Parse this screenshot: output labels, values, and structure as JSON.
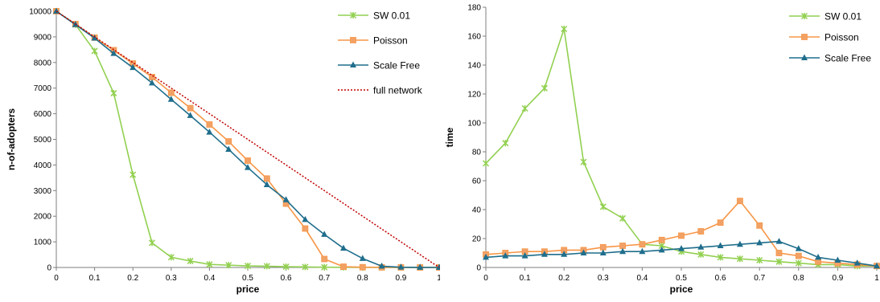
{
  "colors": {
    "sw": "#92d050",
    "poisson": "#f79646",
    "poisson_fill": "#f2a166",
    "scalefree": "#1f6e8c",
    "full": "#c00000",
    "axis": "#7f7f7f"
  },
  "chart_data": [
    {
      "type": "line",
      "xlabel": "price",
      "ylabel": "n-of-adopters",
      "xlim": [
        0,
        1
      ],
      "ylim": [
        0,
        10000
      ],
      "x_ticks": [
        0,
        0.1,
        0.2,
        0.3,
        0.4,
        0.5,
        0.6,
        0.7,
        0.8,
        0.9,
        1
      ],
      "x_tick_labels": [
        "0",
        "0.1",
        "0.2",
        "0.3",
        "0.4",
        "0.5",
        "0.6",
        "0.7",
        "0.8",
        "0.9",
        "1"
      ],
      "y_ticks": [
        0,
        1000,
        2000,
        3000,
        4000,
        5000,
        6000,
        7000,
        8000,
        9000,
        10000
      ],
      "y_tick_labels": [
        "0",
        "1000",
        "2000",
        "3000",
        "4000",
        "5000",
        "6000",
        "7000",
        "8000",
        "9000",
        "10000"
      ],
      "grid": false,
      "legend_position": "top-right",
      "x": [
        0,
        0.05,
        0.1,
        0.15,
        0.2,
        0.25,
        0.3,
        0.35,
        0.4,
        0.45,
        0.5,
        0.55,
        0.6,
        0.65,
        0.7,
        0.75,
        0.8,
        0.85,
        0.9,
        0.95,
        1
      ],
      "series": [
        {
          "name": "SW 0.01",
          "marker": "star",
          "color_key": "sw",
          "values": [
            10000,
            9480,
            8450,
            6800,
            3620,
            960,
            400,
            250,
            120,
            90,
            60,
            50,
            30,
            20,
            10,
            5,
            3,
            2,
            1,
            0,
            0
          ]
        },
        {
          "name": "Poisson",
          "marker": "square",
          "color_key": "poisson",
          "values": [
            10000,
            9500,
            8970,
            8480,
            7960,
            7430,
            6820,
            6220,
            5580,
            4920,
            4170,
            3470,
            2490,
            1520,
            330,
            30,
            10,
            5,
            2,
            0,
            0
          ]
        },
        {
          "name": "Scale Free",
          "marker": "triangle",
          "color_key": "scalefree",
          "values": [
            10000,
            9480,
            8950,
            8350,
            7800,
            7200,
            6560,
            5930,
            5280,
            4610,
            3900,
            3230,
            2640,
            1870,
            1290,
            750,
            350,
            50,
            10,
            2,
            0
          ]
        },
        {
          "name": "full network",
          "marker": "none",
          "dotted": true,
          "color_key": "full",
          "values": [
            10000,
            9500,
            9000,
            8500,
            8000,
            7500,
            7000,
            6500,
            6000,
            5500,
            5000,
            4500,
            4000,
            3500,
            3000,
            2500,
            2000,
            1500,
            1000,
            500,
            0
          ]
        }
      ]
    },
    {
      "type": "line",
      "xlabel": "price",
      "ylabel": "time",
      "xlim": [
        0,
        1
      ],
      "ylim": [
        0,
        180
      ],
      "x_ticks": [
        0,
        0.1,
        0.2,
        0.3,
        0.4,
        0.5,
        0.6,
        0.7,
        0.8,
        0.9,
        1
      ],
      "x_tick_labels": [
        "0",
        "0.1",
        "0.2",
        "0.3",
        "0.4",
        "0.5",
        "0.6",
        "0.7",
        "0.8",
        "0.9",
        "1"
      ],
      "y_ticks": [
        0,
        20,
        40,
        60,
        80,
        100,
        120,
        140,
        160,
        180
      ],
      "y_tick_labels": [
        "0",
        "20",
        "40",
        "60",
        "80",
        "100",
        "120",
        "140",
        "160",
        "180"
      ],
      "grid": false,
      "legend_position": "top-right",
      "x": [
        0,
        0.05,
        0.1,
        0.15,
        0.2,
        0.25,
        0.3,
        0.35,
        0.4,
        0.45,
        0.5,
        0.55,
        0.6,
        0.65,
        0.7,
        0.75,
        0.8,
        0.85,
        0.9,
        0.95,
        1
      ],
      "series": [
        {
          "name": "SW 0.01",
          "marker": "star",
          "color_key": "sw",
          "values": [
            72,
            86,
            110,
            124,
            165,
            73,
            42,
            34,
            16,
            15,
            11,
            9,
            7,
            6,
            5,
            4,
            3,
            2,
            2,
            1,
            1
          ]
        },
        {
          "name": "Poisson",
          "marker": "square",
          "color_key": "poisson",
          "values": [
            9,
            10,
            11,
            11,
            12,
            12,
            14,
            15,
            16,
            19,
            22,
            25,
            31,
            46,
            29,
            10,
            8,
            4,
            3,
            2,
            1
          ]
        },
        {
          "name": "Scale Free",
          "marker": "triangle",
          "color_key": "scalefree",
          "values": [
            7,
            8,
            8,
            9,
            9,
            10,
            10,
            11,
            11,
            12,
            13,
            14,
            15,
            16,
            17,
            18,
            13,
            7,
            5,
            3,
            1
          ]
        }
      ]
    }
  ]
}
